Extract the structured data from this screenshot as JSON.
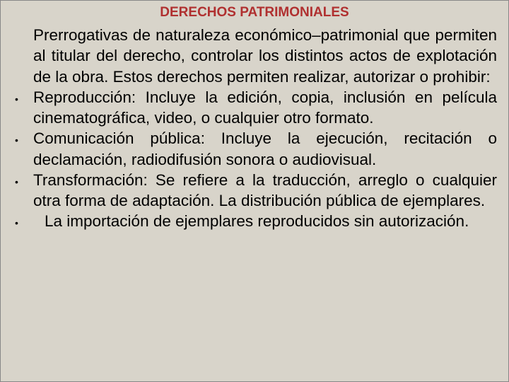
{
  "slide": {
    "title": "DERECHOS PATRIMONIALES",
    "intro": "Prerrogativas de naturaleza económico–patrimonial que permiten al titular del derecho, controlar los distintos actos de explotación de la obra. Estos derechos permiten realizar, autorizar o prohibir:",
    "items": [
      "Reproducción: Incluye la edición, copia, inclusión en película cinematográfica, video, o cualquier otro formato.",
      "Comunicación pública: Incluye la ejecución, recitación o declamación, radiodifusión sonora o audiovisual.",
      "Transformación: Se refiere a la traducción, arreglo o cualquier otra forma de adaptación. La distribución pública de ejemplares.",
      " La importación de ejemplares reproducidos sin autorización."
    ]
  },
  "style": {
    "background_color": "#d8d4ca",
    "title_color": "#b03030",
    "text_color": "#000000",
    "title_fontsize": 19,
    "body_fontsize": 22.5,
    "font_family": "Arial",
    "text_align": "justify",
    "bullet_char": "•",
    "border_color": "#888888"
  }
}
